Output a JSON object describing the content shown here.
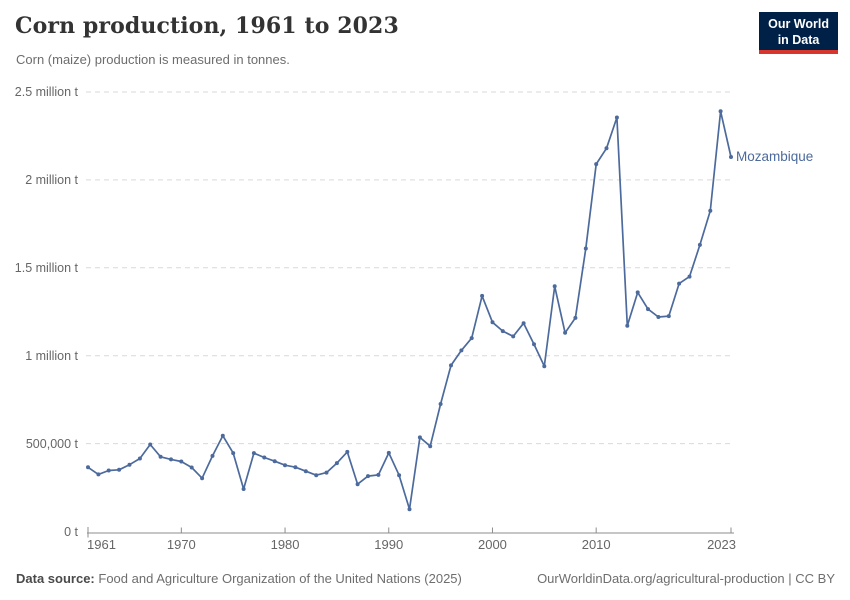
{
  "header": {
    "title": "Corn production, 1961 to 2023",
    "subtitle": "Corn (maize) production is measured in tonnes."
  },
  "logo": {
    "line1": "Our World",
    "line2": "in Data"
  },
  "chart_data": {
    "type": "line",
    "title": "Corn production, 1961 to 2023",
    "unit": "tonnes",
    "entity_label": "Mozambique",
    "xlim": [
      1961,
      2023
    ],
    "ylim": [
      0,
      2500000
    ],
    "grid": "horizontal dashed",
    "legend_position": "end-of-line",
    "xticks": [
      "1961",
      "1970",
      "1980",
      "1990",
      "2000",
      "2010",
      "2023"
    ],
    "yticks": [
      {
        "value": 0,
        "label": "0 t"
      },
      {
        "value": 500000,
        "label": "500,000 t"
      },
      {
        "value": 1000000,
        "label": "1 million t"
      },
      {
        "value": 1500000,
        "label": "1.5 million t"
      },
      {
        "value": 2000000,
        "label": "2 million t"
      },
      {
        "value": 2500000,
        "label": "2.5 million t"
      }
    ],
    "series": [
      {
        "name": "Mozambique",
        "color": "#4C6A9C",
        "x": [
          1961,
          1962,
          1963,
          1964,
          1965,
          1966,
          1967,
          1968,
          1969,
          1970,
          1971,
          1972,
          1973,
          1974,
          1975,
          1976,
          1977,
          1978,
          1979,
          1980,
          1981,
          1982,
          1983,
          1984,
          1985,
          1986,
          1987,
          1988,
          1989,
          1990,
          1991,
          1992,
          1993,
          1994,
          1995,
          1996,
          1997,
          1998,
          1999,
          2000,
          2001,
          2002,
          2003,
          2004,
          2005,
          2006,
          2007,
          2008,
          2009,
          2010,
          2011,
          2012,
          2013,
          2014,
          2015,
          2016,
          2017,
          2018,
          2019,
          2020,
          2021,
          2022,
          2023
        ],
        "values": [
          365000,
          325000,
          347000,
          351000,
          380000,
          415000,
          495000,
          425000,
          410000,
          398000,
          364000,
          303000,
          430000,
          545000,
          446000,
          242000,
          446000,
          421000,
          400000,
          377000,
          366000,
          343000,
          320000,
          335000,
          389000,
          453000,
          269000,
          315000,
          322000,
          447000,
          320000,
          127000,
          535000,
          485000,
          725000,
          945000,
          1030000,
          1100000,
          1340000,
          1190000,
          1140000,
          1110000,
          1185000,
          1065000,
          940000,
          1395000,
          1130000,
          1215000,
          1610000,
          2090000,
          2180000,
          2355000,
          1170000,
          1360000,
          1265000,
          1220000,
          1225000,
          1410000,
          1450000,
          1630000,
          1825000,
          2390000,
          2130000
        ]
      }
    ]
  },
  "footer": {
    "source_label": "Data source:",
    "source_text": "Food and Agriculture Organization of the United Nations (2025)",
    "credit": "OurWorldinData.org/agricultural-production | CC BY"
  },
  "colors": {
    "line": "#4C6A9C",
    "grid": "#d9d9d9",
    "axis": "#8c8c8c",
    "logo_bg": "#002147",
    "logo_accent": "#d8352e",
    "tick_text": "#666666"
  }
}
